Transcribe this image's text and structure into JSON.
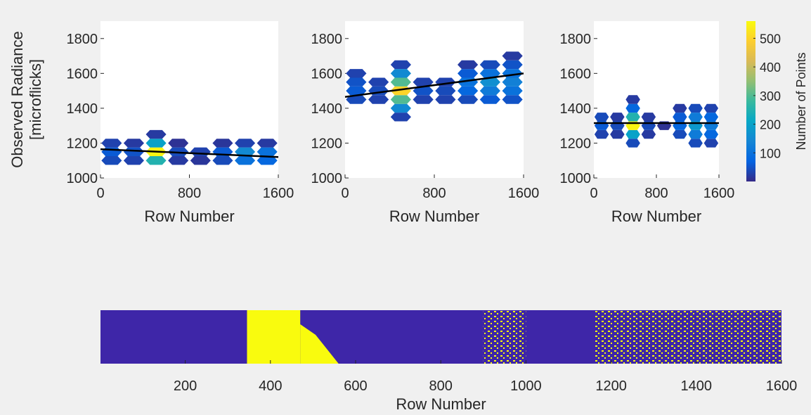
{
  "chart_data": [
    {
      "type": "hexbin",
      "ylabel": [
        "Observed Radiance",
        "[microflicks]"
      ],
      "xlabel": "Row Number",
      "xlim": [
        0,
        1600
      ],
      "ylim": [
        1000,
        1900
      ],
      "xticks": [
        0,
        800,
        1600
      ],
      "yticks": [
        1000,
        1200,
        1400,
        1600,
        1800
      ],
      "x": [
        100,
        100,
        100,
        300,
        300,
        300,
        500,
        500,
        500,
        500,
        700,
        700,
        700,
        900,
        900,
        1100,
        1100,
        1100,
        1300,
        1300,
        1300,
        1500,
        1500,
        1500
      ],
      "y": [
        1100,
        1150,
        1200,
        1100,
        1150,
        1200,
        1100,
        1150,
        1200,
        1250,
        1100,
        1150,
        1200,
        1100,
        1150,
        1100,
        1150,
        1200,
        1100,
        1150,
        1200,
        1100,
        1150,
        1200
      ],
      "counts": [
        40,
        60,
        30,
        30,
        50,
        20,
        250,
        550,
        200,
        20,
        20,
        40,
        10,
        15,
        30,
        40,
        60,
        15,
        100,
        150,
        30,
        80,
        100,
        20
      ],
      "fit": {
        "x": [
          0,
          1600
        ],
        "y": [
          1165,
          1120
        ],
        "color": "#000000"
      }
    },
    {
      "type": "hexbin",
      "xlabel": "Row Number",
      "xlim": [
        0,
        1600
      ],
      "ylim": [
        1000,
        1900
      ],
      "xticks": [
        0,
        800,
        1600
      ],
      "yticks": [
        1000,
        1200,
        1400,
        1600,
        1800
      ],
      "x": [
        100,
        100,
        100,
        100,
        300,
        300,
        300,
        500,
        500,
        500,
        500,
        500,
        500,
        500,
        700,
        700,
        700,
        900,
        900,
        900,
        1100,
        1100,
        1100,
        1100,
        1100,
        1300,
        1300,
        1300,
        1300,
        1300,
        1500,
        1500,
        1500,
        1500,
        1500,
        1500
      ],
      "y": [
        1450,
        1500,
        1550,
        1600,
        1450,
        1500,
        1550,
        1350,
        1400,
        1450,
        1500,
        1550,
        1600,
        1650,
        1450,
        1500,
        1550,
        1450,
        1500,
        1550,
        1450,
        1500,
        1550,
        1600,
        1650,
        1450,
        1500,
        1550,
        1600,
        1650,
        1450,
        1500,
        1550,
        1600,
        1650,
        1700
      ],
      "counts": [
        40,
        60,
        50,
        30,
        30,
        40,
        30,
        30,
        150,
        300,
        500,
        300,
        150,
        30,
        30,
        50,
        30,
        30,
        40,
        30,
        40,
        80,
        100,
        60,
        20,
        60,
        120,
        160,
        100,
        40,
        50,
        100,
        130,
        100,
        50,
        20
      ],
      "fit": {
        "x": [
          0,
          1600
        ],
        "y": [
          1465,
          1600
        ],
        "color": "#000000"
      }
    },
    {
      "type": "hexbin",
      "xlabel": "Row Number",
      "xlim": [
        0,
        1600
      ],
      "ylim": [
        1000,
        1900
      ],
      "xticks": [
        0,
        800,
        1600
      ],
      "yticks": [
        1000,
        1200,
        1400,
        1600,
        1800
      ],
      "x": [
        100,
        100,
        100,
        300,
        300,
        300,
        500,
        500,
        500,
        500,
        500,
        500,
        700,
        700,
        700,
        900,
        1100,
        1100,
        1100,
        1100,
        1300,
        1300,
        1300,
        1300,
        1300,
        1500,
        1500,
        1500,
        1500,
        1500
      ],
      "y": [
        1250,
        1300,
        1350,
        1250,
        1300,
        1350,
        1200,
        1250,
        1300,
        1350,
        1400,
        1450,
        1250,
        1300,
        1350,
        1300,
        1250,
        1300,
        1350,
        1400,
        1200,
        1250,
        1300,
        1350,
        1400,
        1200,
        1250,
        1300,
        1350,
        1400
      ],
      "counts": [
        30,
        60,
        40,
        20,
        40,
        20,
        40,
        200,
        550,
        250,
        80,
        20,
        20,
        40,
        20,
        10,
        40,
        80,
        60,
        20,
        40,
        120,
        180,
        120,
        40,
        30,
        80,
        120,
        80,
        30
      ],
      "fit": {
        "x": [
          0,
          1600
        ],
        "y": [
          1315,
          1315
        ],
        "color": "#000000"
      }
    },
    {
      "type": "colorbar",
      "label": "Number of Points",
      "lim": [
        0,
        560
      ],
      "ticks": [
        100,
        200,
        300,
        400,
        500
      ]
    },
    {
      "type": "mask",
      "xlabel": "Row Number",
      "xlim": [
        1,
        1600
      ],
      "xticks": [
        200,
        400,
        600,
        800,
        1000,
        1200,
        1400,
        1600
      ],
      "background": "#3e26a8",
      "color": "#f9fb0e",
      "solid_ranges": [
        [
          345,
          470
        ],
        [
          470,
          560
        ]
      ],
      "speckled_ranges": [
        [
          900,
          1000
        ],
        [
          1160,
          1600
        ]
      ]
    }
  ]
}
